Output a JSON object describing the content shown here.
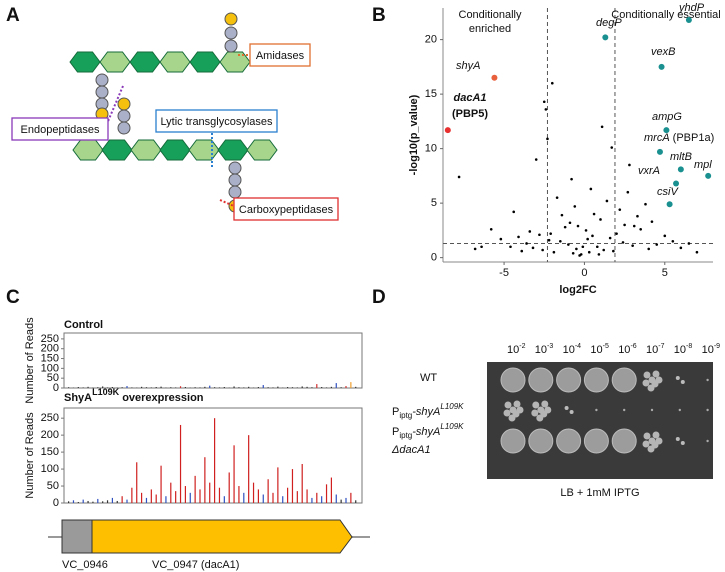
{
  "panel_labels": {
    "a": "A",
    "b": "B",
    "c": "C",
    "d": "D"
  },
  "diagram": {
    "labels": [
      "Amidases",
      "Endopeptidases",
      "Lytic transglycosylases",
      "Carboxypeptidases"
    ]
  },
  "chart_data": [
    {
      "type": "scatter",
      "x_label": "log2FC",
      "y_label": "-log10(p_value)",
      "annotations": {
        "left": [
          "Conditionally",
          "enriched"
        ],
        "right": "Conditionally essential"
      },
      "xlim": [
        -8.8,
        8
      ],
      "ylim": [
        -0.4,
        22.9
      ],
      "xticks": [
        -5,
        0,
        5
      ],
      "yticks": [
        0,
        5,
        10,
        15,
        20
      ],
      "vlines": [
        -2.3,
        1.9
      ],
      "hline": 1.3,
      "color": "#000000",
      "x": [
        -0.2,
        0.3,
        -0.5,
        0.8,
        -1.0,
        1.2,
        -1.5,
        1.6,
        -0.7,
        0.5,
        0.1,
        -0.3,
        2.0,
        -2.2,
        2.5,
        -2.8,
        3.0,
        -3.2,
        3.5,
        -3.6,
        4.0,
        -4.1,
        1.0,
        -1.2,
        0.6,
        -0.9,
        1.8,
        -1.9,
        2.4,
        -2.6,
        3.3,
        -3.4,
        4.5,
        -4.6,
        5.0,
        -5.2,
        -6.4,
        -7.8,
        6.0,
        7.0,
        -2.5,
        -2.0,
        2.2,
        2.7,
        3.8,
        -3.0,
        1.4,
        -1.4,
        0.2,
        -0.1,
        -0.4,
        0.9,
        2.8,
        -2.4,
        -1.7,
        1.7,
        4.2,
        -4.4,
        5.5,
        -5.8,
        -2.3,
        -0.8,
        0.4,
        -0.6,
        1.1,
        -2.1,
        3.1,
        -3.9,
        6.5,
        -6.8
      ],
      "y": [
        0.3,
        0.5,
        0.8,
        1.0,
        1.2,
        0.7,
        1.5,
        1.8,
        0.4,
        2.0,
        2.5,
        0.2,
        2.2,
        1.6,
        3.0,
        2.1,
        1.1,
        0.9,
        2.6,
        1.3,
        0.8,
        1.9,
        3.5,
        2.8,
        4.0,
        3.2,
        0.6,
        0.5,
        1.4,
        0.7,
        3.8,
        2.4,
        1.2,
        1.0,
        2.0,
        1.7,
        1.0,
        7.4,
        0.9,
        0.5,
        14.3,
        16.0,
        4.4,
        6.0,
        4.9,
        9.0,
        5.2,
        3.9,
        1.7,
        1.0,
        2.9,
        0.3,
        8.5,
        13.6,
        5.5,
        10.1,
        3.3,
        4.2,
        1.5,
        2.6,
        10.9,
        7.2,
        6.3,
        4.7,
        12.0,
        2.2,
        2.9,
        0.6,
        1.3,
        0.8
      ],
      "highlights": [
        {
          "label": "dacA1",
          "sublabel": "(PBP5)",
          "x": -8.5,
          "y": 11.7,
          "color": "#e83030"
        },
        {
          "label": "shyA",
          "x": -5.6,
          "y": 16.5,
          "color": "#e8603c"
        },
        {
          "label": "degP",
          "x": 1.3,
          "y": 20.2,
          "color": "#1a9090"
        },
        {
          "label": "yhdP",
          "x": 6.5,
          "y": 21.8,
          "color": "#1a9090"
        },
        {
          "label": "vexB",
          "x": 4.8,
          "y": 17.5,
          "color": "#1a9090"
        },
        {
          "label": "ampG",
          "x": 5.1,
          "y": 11.7,
          "color": "#1a9090"
        },
        {
          "label": "mrcA",
          "note": "(PBP1a)",
          "x": 4.7,
          "y": 9.7,
          "color": "#1a9090"
        },
        {
          "label": "mltB",
          "x": 6.0,
          "y": 8.1,
          "color": "#1a9090"
        },
        {
          "label": "mpl",
          "x": 7.7,
          "y": 7.5,
          "color": "#1a9090"
        },
        {
          "label": "vxrA",
          "x": 5.7,
          "y": 6.8,
          "color": "#1a9090"
        },
        {
          "label": "csiV",
          "x": 5.3,
          "y": 4.9,
          "color": "#1a9090"
        }
      ]
    },
    {
      "type": "bar",
      "title": "Control",
      "y_label": "Number of Reads",
      "ylim": [
        0,
        280
      ],
      "yticks": [
        0,
        50,
        100,
        150,
        200,
        250
      ],
      "values": [
        4,
        2,
        5,
        3,
        6,
        2,
        4,
        8,
        3,
        5,
        2,
        4,
        10,
        3,
        2,
        6,
        4,
        3,
        5,
        7,
        2,
        4,
        3,
        9,
        5,
        2,
        4,
        3,
        6,
        12,
        4,
        3,
        5,
        2,
        8,
        4,
        3,
        6,
        2,
        5,
        15,
        4,
        3,
        7,
        2,
        5,
        4,
        3,
        8,
        6,
        4,
        20,
        5,
        3,
        6,
        25,
        4,
        10,
        30,
        6
      ],
      "colors": [
        "#333",
        "#333",
        "#333",
        "#333",
        "#333",
        "#333",
        "#333",
        "#333",
        "#333",
        "#333",
        "#333",
        "#333",
        "#3050c0",
        "#333",
        "#333",
        "#333",
        "#333",
        "#333",
        "#333",
        "#333",
        "#333",
        "#333",
        "#333",
        "#d03030",
        "#333",
        "#333",
        "#333",
        "#333",
        "#333",
        "#3050c0",
        "#333",
        "#333",
        "#333",
        "#333",
        "#333",
        "#333",
        "#333",
        "#333",
        "#333",
        "#333",
        "#3050c0",
        "#333",
        "#333",
        "#333",
        "#333",
        "#333",
        "#333",
        "#333",
        "#333",
        "#333",
        "#333",
        "#d03030",
        "#333",
        "#333",
        "#333",
        "#3050c0",
        "#333",
        "#d03030",
        "#f0a030",
        "#333"
      ]
    },
    {
      "type": "bar",
      "title": "ShyA",
      "title_sup": "L109K",
      "title_rest": " overexpression",
      "y_label": "Number of Reads",
      "ylim": [
        0,
        280
      ],
      "yticks": [
        0,
        50,
        100,
        150,
        200,
        250
      ],
      "values": [
        5,
        8,
        3,
        10,
        6,
        4,
        12,
        5,
        8,
        15,
        6,
        20,
        10,
        45,
        120,
        30,
        15,
        40,
        25,
        110,
        20,
        60,
        35,
        230,
        50,
        30,
        80,
        40,
        135,
        60,
        250,
        45,
        20,
        90,
        170,
        50,
        30,
        200,
        60,
        40,
        25,
        70,
        30,
        105,
        20,
        45,
        100,
        35,
        115,
        40,
        15,
        30,
        20,
        55,
        75,
        25,
        10,
        15,
        30,
        8
      ],
      "colors": [
        "#333",
        "#3050c0",
        "#333",
        "#3050c0",
        "#333",
        "#333",
        "#3050c0",
        "#333",
        "#333",
        "#3050c0",
        "#333",
        "#d02020",
        "#3050c0",
        "#d02020",
        "#d02020",
        "#d02020",
        "#3050c0",
        "#d02020",
        "#d02020",
        "#d02020",
        "#3050c0",
        "#d02020",
        "#d02020",
        "#d02020",
        "#d02020",
        "#3050c0",
        "#d02020",
        "#d02020",
        "#d02020",
        "#d02020",
        "#d02020",
        "#d02020",
        "#3050c0",
        "#d02020",
        "#d02020",
        "#d02020",
        "#3050c0",
        "#d02020",
        "#d02020",
        "#d02020",
        "#3050c0",
        "#d02020",
        "#d02020",
        "#d02020",
        "#3050c0",
        "#d02020",
        "#d02020",
        "#d02020",
        "#d02020",
        "#d02020",
        "#3050c0",
        "#d02020",
        "#3050c0",
        "#d02020",
        "#d02020",
        "#3050c0",
        "#333",
        "#3050c0",
        "#d02020",
        "#333"
      ]
    }
  ],
  "gene_map": {
    "genes": [
      "VC_0946",
      "VC_0947 (dacA1)"
    ]
  },
  "plate": {
    "dilution_base": "10",
    "dilution_exponents": [
      "-2",
      "-3",
      "-4",
      "-5",
      "-6",
      "-7",
      "-8",
      "-9"
    ],
    "rows": [
      {
        "text": "WT"
      },
      {
        "text": "P",
        "sub": "iptg",
        "gene": "-shyA",
        "sup": "L109K"
      },
      {
        "text": "P",
        "sub": "iptg",
        "gene": "-shyA",
        "sup": "L109K",
        "line2": "ΔdacA1"
      }
    ],
    "caption": "LB + 1mM IPTG"
  }
}
